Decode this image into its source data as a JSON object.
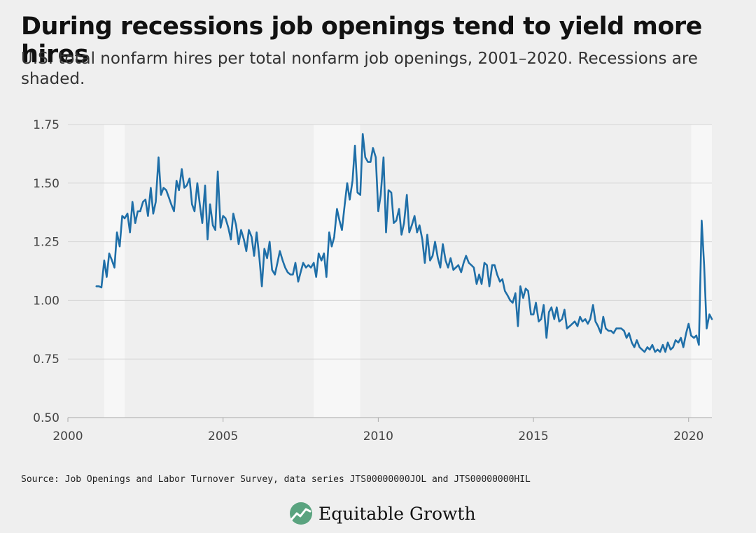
{
  "header": {
    "title": "During recessions job openings tend to yield more hires",
    "subtitle": "U.S. total nonfarm hires per total nonfarm job openings, 2001–2020. Recessions are shaded."
  },
  "footer": {
    "source": "Source: Job Openings and Labor Turnover Survey, data series JTS00000000JOL and JTS00000000HIL",
    "brand": "Equitable Growth"
  },
  "colors": {
    "line": "#1f6fa8",
    "recession": "#f7f7f7",
    "grid": "#d4d4d4",
    "brand_green": "#5aa37f"
  },
  "chart_data": {
    "type": "line",
    "title": "During recessions job openings tend to yield more hires",
    "xlabel": "",
    "ylabel": "",
    "xlim": [
      2000,
      2020.75
    ],
    "ylim": [
      0.5,
      1.75
    ],
    "xticks": [
      "2000",
      "2005",
      "2010",
      "2015",
      "2020"
    ],
    "yticks": [
      "0.50",
      "0.75",
      "1.00",
      "1.25",
      "1.50",
      "1.75"
    ],
    "grid": true,
    "recessions": [
      [
        2001.17,
        2001.83
      ],
      [
        2007.92,
        2009.42
      ],
      [
        2020.08,
        2020.75
      ]
    ],
    "series": [
      {
        "values": [
          [
            2000.92,
            1.06
          ],
          [
            2001.0,
            1.06
          ],
          [
            2001.08,
            1.055
          ],
          [
            2001.17,
            1.17
          ],
          [
            2001.25,
            1.1
          ],
          [
            2001.33,
            1.2
          ],
          [
            2001.42,
            1.17
          ],
          [
            2001.5,
            1.14
          ],
          [
            2001.58,
            1.29
          ],
          [
            2001.67,
            1.23
          ],
          [
            2001.75,
            1.36
          ],
          [
            2001.83,
            1.35
          ],
          [
            2001.92,
            1.37
          ],
          [
            2002.0,
            1.29
          ],
          [
            2002.08,
            1.42
          ],
          [
            2002.17,
            1.33
          ],
          [
            2002.25,
            1.38
          ],
          [
            2002.33,
            1.38
          ],
          [
            2002.42,
            1.42
          ],
          [
            2002.5,
            1.43
          ],
          [
            2002.58,
            1.36
          ],
          [
            2002.67,
            1.48
          ],
          [
            2002.75,
            1.37
          ],
          [
            2002.83,
            1.42
          ],
          [
            2002.92,
            1.61
          ],
          [
            2003.0,
            1.45
          ],
          [
            2003.08,
            1.48
          ],
          [
            2003.17,
            1.47
          ],
          [
            2003.25,
            1.44
          ],
          [
            2003.33,
            1.41
          ],
          [
            2003.42,
            1.38
          ],
          [
            2003.5,
            1.51
          ],
          [
            2003.58,
            1.47
          ],
          [
            2003.67,
            1.56
          ],
          [
            2003.75,
            1.48
          ],
          [
            2003.83,
            1.49
          ],
          [
            2003.92,
            1.52
          ],
          [
            2004.0,
            1.41
          ],
          [
            2004.08,
            1.38
          ],
          [
            2004.17,
            1.5
          ],
          [
            2004.25,
            1.41
          ],
          [
            2004.33,
            1.33
          ],
          [
            2004.42,
            1.49
          ],
          [
            2004.5,
            1.26
          ],
          [
            2004.58,
            1.41
          ],
          [
            2004.67,
            1.32
          ],
          [
            2004.75,
            1.3
          ],
          [
            2004.83,
            1.55
          ],
          [
            2004.92,
            1.31
          ],
          [
            2005.0,
            1.36
          ],
          [
            2005.08,
            1.35
          ],
          [
            2005.17,
            1.31
          ],
          [
            2005.25,
            1.26
          ],
          [
            2005.33,
            1.37
          ],
          [
            2005.42,
            1.32
          ],
          [
            2005.5,
            1.24
          ],
          [
            2005.58,
            1.3
          ],
          [
            2005.67,
            1.26
          ],
          [
            2005.75,
            1.21
          ],
          [
            2005.83,
            1.3
          ],
          [
            2005.92,
            1.27
          ],
          [
            2006.0,
            1.19
          ],
          [
            2006.08,
            1.29
          ],
          [
            2006.17,
            1.18
          ],
          [
            2006.25,
            1.06
          ],
          [
            2006.33,
            1.22
          ],
          [
            2006.42,
            1.18
          ],
          [
            2006.5,
            1.25
          ],
          [
            2006.58,
            1.13
          ],
          [
            2006.67,
            1.11
          ],
          [
            2006.75,
            1.16
          ],
          [
            2006.83,
            1.21
          ],
          [
            2006.92,
            1.17
          ],
          [
            2007.0,
            1.14
          ],
          [
            2007.08,
            1.12
          ],
          [
            2007.17,
            1.11
          ],
          [
            2007.25,
            1.11
          ],
          [
            2007.33,
            1.16
          ],
          [
            2007.42,
            1.08
          ],
          [
            2007.5,
            1.12
          ],
          [
            2007.58,
            1.16
          ],
          [
            2007.67,
            1.14
          ],
          [
            2007.75,
            1.15
          ],
          [
            2007.83,
            1.14
          ],
          [
            2007.92,
            1.16
          ],
          [
            2008.0,
            1.1
          ],
          [
            2008.08,
            1.2
          ],
          [
            2008.17,
            1.17
          ],
          [
            2008.25,
            1.2
          ],
          [
            2008.33,
            1.1
          ],
          [
            2008.42,
            1.29
          ],
          [
            2008.5,
            1.23
          ],
          [
            2008.58,
            1.27
          ],
          [
            2008.67,
            1.39
          ],
          [
            2008.75,
            1.34
          ],
          [
            2008.83,
            1.3
          ],
          [
            2008.92,
            1.41
          ],
          [
            2009.0,
            1.5
          ],
          [
            2009.08,
            1.43
          ],
          [
            2009.17,
            1.51
          ],
          [
            2009.25,
            1.66
          ],
          [
            2009.33,
            1.46
          ],
          [
            2009.42,
            1.45
          ],
          [
            2009.5,
            1.71
          ],
          [
            2009.58,
            1.61
          ],
          [
            2009.67,
            1.59
          ],
          [
            2009.75,
            1.59
          ],
          [
            2009.83,
            1.65
          ],
          [
            2009.92,
            1.61
          ],
          [
            2010.0,
            1.38
          ],
          [
            2010.08,
            1.45
          ],
          [
            2010.17,
            1.61
          ],
          [
            2010.25,
            1.29
          ],
          [
            2010.33,
            1.47
          ],
          [
            2010.42,
            1.46
          ],
          [
            2010.5,
            1.33
          ],
          [
            2010.58,
            1.34
          ],
          [
            2010.67,
            1.39
          ],
          [
            2010.75,
            1.28
          ],
          [
            2010.83,
            1.33
          ],
          [
            2010.92,
            1.45
          ],
          [
            2011.0,
            1.29
          ],
          [
            2011.08,
            1.32
          ],
          [
            2011.17,
            1.36
          ],
          [
            2011.25,
            1.29
          ],
          [
            2011.33,
            1.32
          ],
          [
            2011.42,
            1.26
          ],
          [
            2011.5,
            1.16
          ],
          [
            2011.58,
            1.28
          ],
          [
            2011.67,
            1.17
          ],
          [
            2011.75,
            1.19
          ],
          [
            2011.83,
            1.25
          ],
          [
            2011.92,
            1.18
          ],
          [
            2012.0,
            1.14
          ],
          [
            2012.08,
            1.24
          ],
          [
            2012.17,
            1.17
          ],
          [
            2012.25,
            1.14
          ],
          [
            2012.33,
            1.18
          ],
          [
            2012.42,
            1.13
          ],
          [
            2012.5,
            1.14
          ],
          [
            2012.58,
            1.15
          ],
          [
            2012.67,
            1.12
          ],
          [
            2012.75,
            1.16
          ],
          [
            2012.83,
            1.19
          ],
          [
            2012.92,
            1.16
          ],
          [
            2013.0,
            1.15
          ],
          [
            2013.08,
            1.14
          ],
          [
            2013.17,
            1.07
          ],
          [
            2013.25,
            1.11
          ],
          [
            2013.33,
            1.07
          ],
          [
            2013.42,
            1.16
          ],
          [
            2013.5,
            1.15
          ],
          [
            2013.58,
            1.06
          ],
          [
            2013.67,
            1.15
          ],
          [
            2013.75,
            1.15
          ],
          [
            2013.83,
            1.11
          ],
          [
            2013.92,
            1.08
          ],
          [
            2014.0,
            1.09
          ],
          [
            2014.08,
            1.04
          ],
          [
            2014.17,
            1.02
          ],
          [
            2014.25,
            1.0
          ],
          [
            2014.33,
            0.99
          ],
          [
            2014.42,
            1.03
          ],
          [
            2014.5,
            0.89
          ],
          [
            2014.58,
            1.06
          ],
          [
            2014.67,
            1.01
          ],
          [
            2014.75,
            1.05
          ],
          [
            2014.83,
            1.04
          ],
          [
            2014.92,
            0.94
          ],
          [
            2015.0,
            0.94
          ],
          [
            2015.08,
            0.99
          ],
          [
            2015.17,
            0.91
          ],
          [
            2015.25,
            0.92
          ],
          [
            2015.33,
            0.98
          ],
          [
            2015.42,
            0.84
          ],
          [
            2015.5,
            0.95
          ],
          [
            2015.58,
            0.97
          ],
          [
            2015.67,
            0.92
          ],
          [
            2015.75,
            0.97
          ],
          [
            2015.83,
            0.91
          ],
          [
            2015.92,
            0.92
          ],
          [
            2016.0,
            0.96
          ],
          [
            2016.08,
            0.88
          ],
          [
            2016.17,
            0.89
          ],
          [
            2016.25,
            0.9
          ],
          [
            2016.33,
            0.91
          ],
          [
            2016.42,
            0.89
          ],
          [
            2016.5,
            0.93
          ],
          [
            2016.58,
            0.91
          ],
          [
            2016.67,
            0.92
          ],
          [
            2016.75,
            0.9
          ],
          [
            2016.83,
            0.92
          ],
          [
            2016.92,
            0.98
          ],
          [
            2017.0,
            0.91
          ],
          [
            2017.08,
            0.89
          ],
          [
            2017.17,
            0.86
          ],
          [
            2017.25,
            0.93
          ],
          [
            2017.33,
            0.88
          ],
          [
            2017.42,
            0.87
          ],
          [
            2017.5,
            0.87
          ],
          [
            2017.58,
            0.86
          ],
          [
            2017.67,
            0.88
          ],
          [
            2017.75,
            0.88
          ],
          [
            2017.83,
            0.88
          ],
          [
            2017.92,
            0.87
          ],
          [
            2018.0,
            0.84
          ],
          [
            2018.08,
            0.86
          ],
          [
            2018.17,
            0.82
          ],
          [
            2018.25,
            0.8
          ],
          [
            2018.33,
            0.83
          ],
          [
            2018.42,
            0.8
          ],
          [
            2018.5,
            0.79
          ],
          [
            2018.58,
            0.78
          ],
          [
            2018.67,
            0.8
          ],
          [
            2018.75,
            0.79
          ],
          [
            2018.83,
            0.81
          ],
          [
            2018.92,
            0.78
          ],
          [
            2019.0,
            0.79
          ],
          [
            2019.08,
            0.78
          ],
          [
            2019.17,
            0.81
          ],
          [
            2019.25,
            0.78
          ],
          [
            2019.33,
            0.82
          ],
          [
            2019.42,
            0.79
          ],
          [
            2019.5,
            0.8
          ],
          [
            2019.58,
            0.83
          ],
          [
            2019.67,
            0.82
          ],
          [
            2019.75,
            0.84
          ],
          [
            2019.83,
            0.8
          ],
          [
            2019.92,
            0.86
          ],
          [
            2020.0,
            0.9
          ],
          [
            2020.08,
            0.85
          ],
          [
            2020.17,
            0.84
          ],
          [
            2020.25,
            0.85
          ],
          [
            2020.33,
            0.81
          ],
          [
            2020.42,
            1.34
          ],
          [
            2020.5,
            1.15
          ],
          [
            2020.58,
            0.88
          ],
          [
            2020.67,
            0.94
          ],
          [
            2020.75,
            0.92
          ]
        ]
      }
    ]
  }
}
